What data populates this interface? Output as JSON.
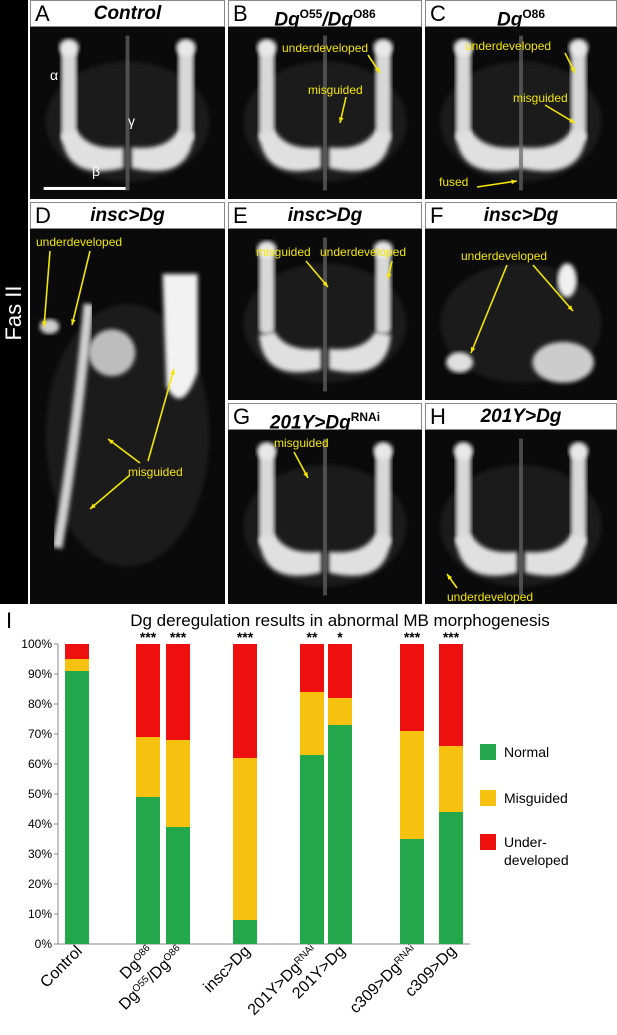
{
  "figure": {
    "side_label": "Fas II",
    "panels": [
      {
        "letter": "A",
        "title": "Control",
        "sup": ""
      },
      {
        "letter": "B",
        "title": "DgO55/DgO86",
        "title_html_parts": [
          "Dg",
          "O55",
          "/Dg",
          "O86"
        ],
        "sup": ""
      },
      {
        "letter": "C",
        "title": "DgO86",
        "title_html_parts": [
          "Dg",
          "O86"
        ],
        "sup": ""
      },
      {
        "letter": "D",
        "title": "insc>Dg",
        "sup": ""
      },
      {
        "letter": "E",
        "title": "insc>Dg",
        "sup": ""
      },
      {
        "letter": "F",
        "title": "insc>Dg",
        "sup": ""
      },
      {
        "letter": "G",
        "title": "201Y>DgRNAi",
        "title_html_parts": [
          "201Y>Dg",
          "RNAi"
        ],
        "sup": ""
      },
      {
        "letter": "H",
        "title": "201Y>Dg",
        "sup": ""
      }
    ],
    "greek": {
      "alpha": "α",
      "gamma": "γ",
      "beta": "β"
    },
    "annotations": {
      "underdeveloped": "underdeveloped",
      "misguided": "misguided",
      "fused": "fused"
    },
    "panel_i_letter": "I"
  },
  "chart_data": {
    "type": "bar",
    "stacked": true,
    "title": "Dg deregulation results in abnormal MB morphogenesis",
    "categories": [
      "Control",
      "DgO86",
      "DgO55/DgO86",
      "insc>Dg",
      "201Y>DgRNAi",
      "201Y>Dg",
      "c309>DgRNAi",
      "c309>Dg"
    ],
    "category_label_parts": [
      [
        "Control",
        ""
      ],
      [
        "Dg",
        "O86"
      ],
      [
        "Dg",
        "O55",
        "/Dg",
        "O86"
      ],
      [
        "insc>Dg",
        ""
      ],
      [
        "201Y>Dg",
        "RNAi"
      ],
      [
        "201Y>Dg",
        ""
      ],
      [
        "c309>Dg",
        "RNAi"
      ],
      [
        "c309>Dg",
        ""
      ]
    ],
    "series": [
      {
        "name": "Normal",
        "color": "#22a84a",
        "values": [
          91,
          49,
          39,
          8,
          63,
          73,
          35,
          44
        ]
      },
      {
        "name": "Misguided",
        "color": "#f7c10f",
        "values": [
          4,
          20,
          29,
          54,
          21,
          9,
          36,
          22
        ]
      },
      {
        "name": "Under-developed",
        "color": "#ee0f0f",
        "values": [
          5,
          31,
          32,
          38,
          16,
          18,
          29,
          34
        ]
      }
    ],
    "significance": [
      "",
      "***",
      "***",
      "***",
      "**",
      "*",
      "***",
      "***"
    ],
    "y_ticks": [
      "0%",
      "10%",
      "20%",
      "30%",
      "40%",
      "50%",
      "60%",
      "70%",
      "80%",
      "90%",
      "100%"
    ],
    "ylim": [
      0,
      100
    ],
    "grid": false,
    "legend": {
      "position": "right",
      "labels": [
        "Normal",
        "Misguided",
        "Under-",
        "developed"
      ]
    }
  }
}
